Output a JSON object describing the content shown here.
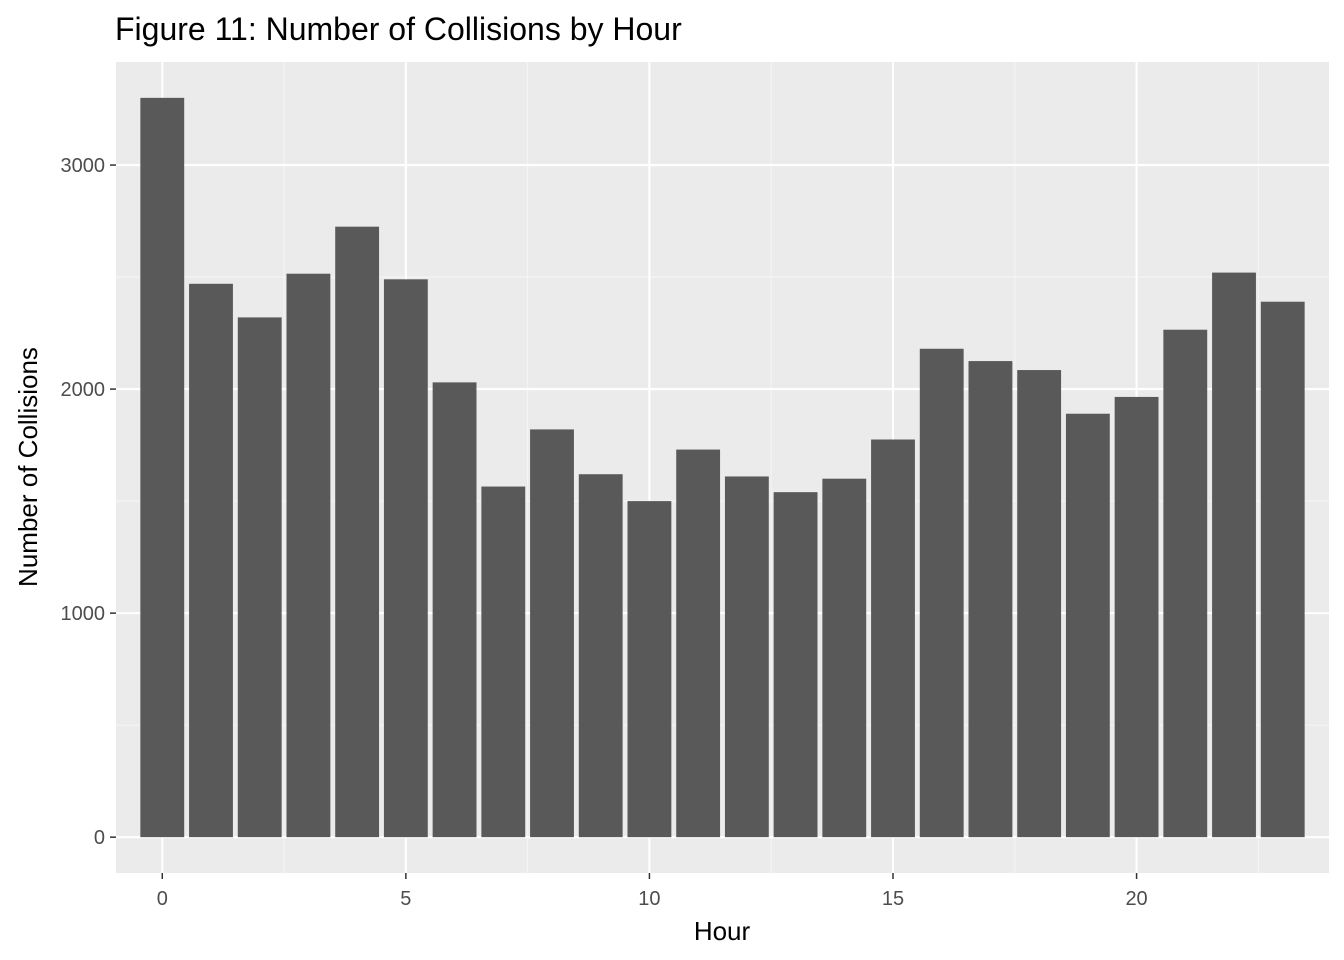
{
  "chart_data": {
    "type": "bar",
    "title": "Figure 11: Number of Collisions by Hour",
    "xlabel": "Hour",
    "ylabel": "Number of Collisions",
    "x": [
      0,
      1,
      2,
      3,
      4,
      5,
      6,
      7,
      8,
      9,
      10,
      11,
      12,
      13,
      14,
      15,
      16,
      17,
      18,
      19,
      20,
      21,
      22,
      23
    ],
    "values": [
      3300,
      2470,
      2320,
      2515,
      2725,
      2490,
      2030,
      1565,
      1820,
      1620,
      1500,
      1730,
      1610,
      1540,
      1600,
      1775,
      2180,
      2125,
      2085,
      1890,
      1965,
      2265,
      2520,
      2390
    ],
    "xlim": [
      -0.95,
      23.95
    ],
    "ylim": [
      -160,
      3460
    ],
    "x_ticks": [
      0,
      5,
      10,
      15,
      20
    ],
    "y_ticks": [
      0,
      1000,
      2000,
      3000
    ],
    "grid": true,
    "legend": "none",
    "colors": {
      "bar": "#595959",
      "panel_background": "#ebebeb",
      "grid_major": "#ffffff",
      "grid_minor": "#f5f5f5",
      "tick_text": "#4d4d4d",
      "tick_line": "#333333"
    }
  }
}
